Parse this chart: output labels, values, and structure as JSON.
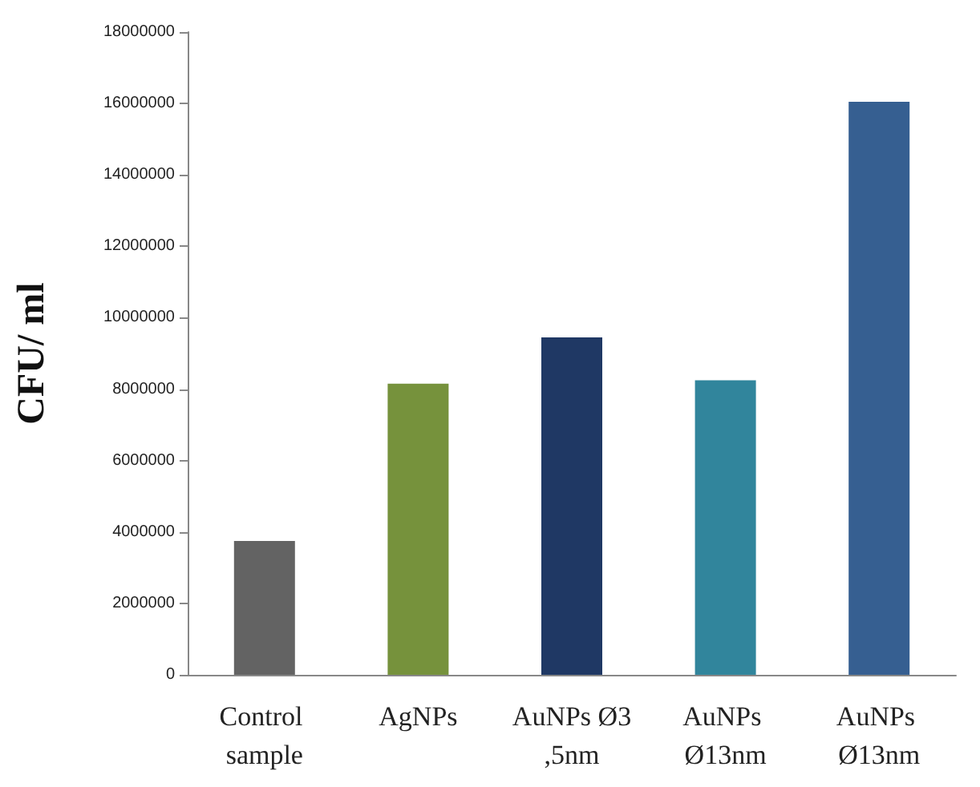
{
  "chart_data": {
    "type": "bar",
    "ylabel": "CFU/ ml",
    "categories": [
      "Control sample",
      "AgNPs",
      "AuNPs Ø3,5nm",
      "AuNPs Ø13nm",
      "AuNPs Ø13nm"
    ],
    "values": [
      3750000,
      8150000,
      9450000,
      8250000,
      16050000
    ],
    "colors": [
      "#636363",
      "#76923c",
      "#1f3864",
      "#31859c",
      "#365f91"
    ],
    "ylim": [
      0,
      18000000
    ],
    "yticks": [
      0,
      2000000,
      4000000,
      6000000,
      8000000,
      10000000,
      12000000,
      14000000,
      16000000,
      18000000
    ],
    "grid": false
  }
}
